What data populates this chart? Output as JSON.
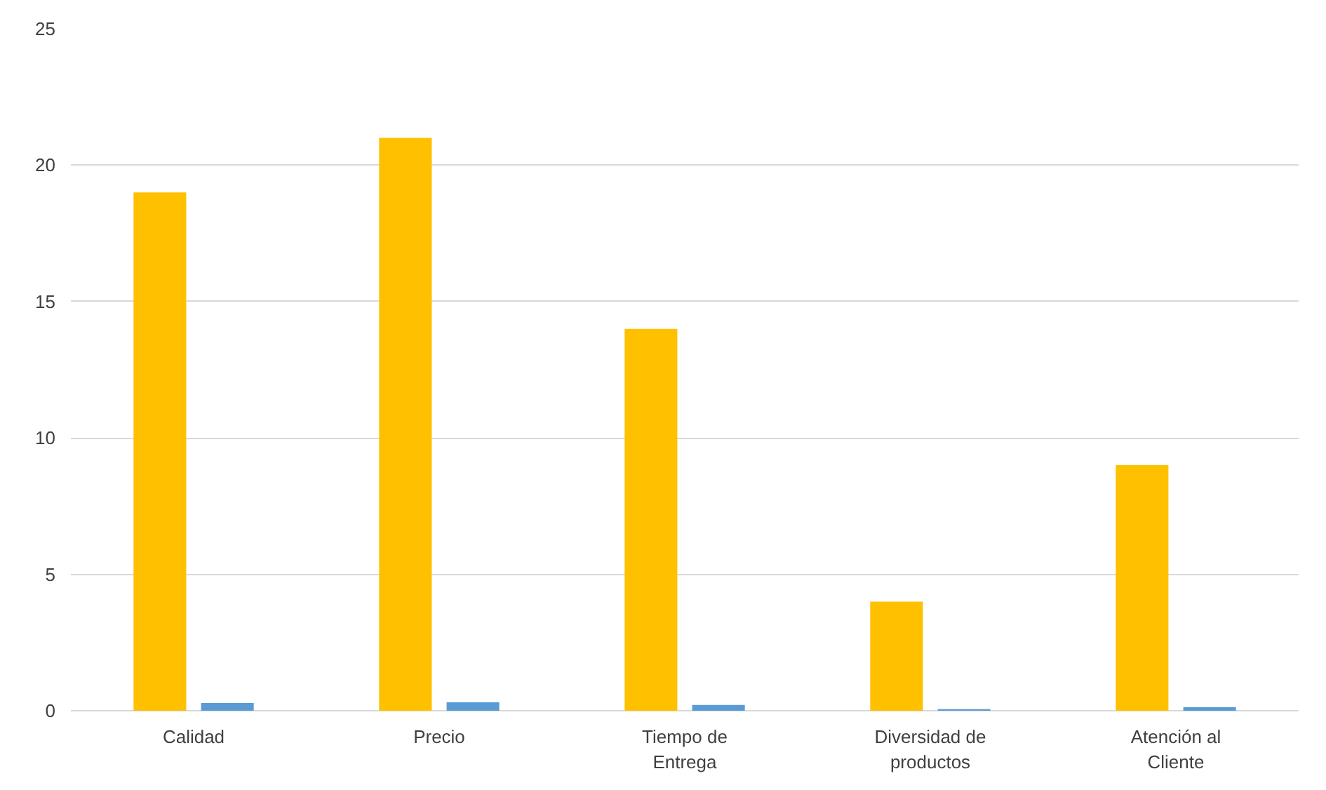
{
  "chart_data": {
    "type": "bar",
    "categories": [
      "Calidad",
      "Precio",
      "Tiempo de Entrega",
      "Diversidad de productos",
      "Atención al Cliente"
    ],
    "series": [
      {
        "color": "#ffc000",
        "values": [
          19,
          21,
          14,
          4,
          9
        ]
      },
      {
        "color": "#5b9bd5",
        "values": [
          0.28,
          0.31,
          0.21,
          0.06,
          0.13
        ]
      }
    ],
    "ylim": [
      0,
      25
    ],
    "yticks": [
      0,
      5,
      10,
      15,
      20,
      25
    ],
    "grid": "y"
  }
}
